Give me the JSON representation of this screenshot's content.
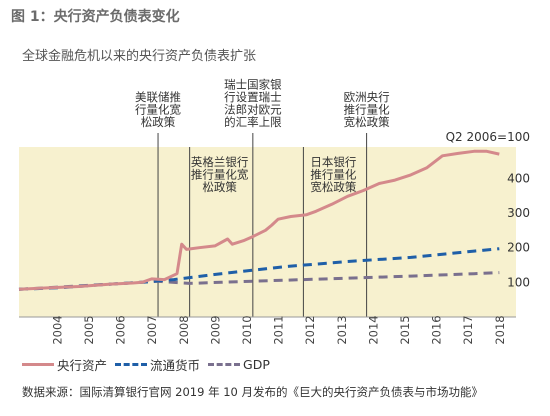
{
  "figure": {
    "title": "图 1：央行资产负债表变化",
    "subtitle": "全球金融危机以来的央行资产负债表扩张",
    "source": "数据来源：国际清算银行官网 2019 年 10 月发布的《巨大的央行资产负债表与市场功能》"
  },
  "chart_data": {
    "type": "line",
    "ylabel_unit": "Q2 2006=100",
    "ylim": [
      0,
      500
    ],
    "yticks": [
      100,
      200,
      300,
      400
    ],
    "xlim": [
      2004,
      2019
    ],
    "xticks": [
      "2004",
      "2005",
      "2006",
      "2007",
      "2008",
      "2009",
      "2010",
      "2011",
      "2012",
      "2013",
      "2014",
      "2015",
      "2016",
      "2017",
      "2018"
    ],
    "grid": false,
    "legend_position": "bottom-left",
    "series": [
      {
        "name": "央行资产",
        "color": "#d4898b",
        "style": "solid",
        "points": [
          [
            2003.6,
            80
          ],
          [
            2004.5,
            84
          ],
          [
            2005.5,
            88
          ],
          [
            2006.5,
            95
          ],
          [
            2007.2,
            98
          ],
          [
            2007.5,
            100
          ],
          [
            2007.8,
            110
          ],
          [
            2008.2,
            108
          ],
          [
            2008.6,
            125
          ],
          [
            2008.75,
            210
          ],
          [
            2008.9,
            195
          ],
          [
            2009.3,
            200
          ],
          [
            2009.8,
            205
          ],
          [
            2010.2,
            225
          ],
          [
            2010.35,
            210
          ],
          [
            2010.7,
            220
          ],
          [
            2011.0,
            232
          ],
          [
            2011.4,
            250
          ],
          [
            2011.6,
            265
          ],
          [
            2011.8,
            282
          ],
          [
            2012.2,
            290
          ],
          [
            2012.7,
            295
          ],
          [
            2013.0,
            305
          ],
          [
            2013.5,
            325
          ],
          [
            2014.0,
            348
          ],
          [
            2014.5,
            365
          ],
          [
            2015.0,
            385
          ],
          [
            2015.5,
            395
          ],
          [
            2016.0,
            410
          ],
          [
            2016.5,
            430
          ],
          [
            2017.0,
            465
          ],
          [
            2017.5,
            472
          ],
          [
            2018.0,
            478
          ],
          [
            2018.4,
            478
          ],
          [
            2018.8,
            470
          ]
        ]
      },
      {
        "name": "流通货币",
        "color": "#1f5fa8",
        "style": "dashed",
        "points": [
          [
            2003.6,
            80
          ],
          [
            2005.0,
            85
          ],
          [
            2006.5,
            95
          ],
          [
            2007.5,
            100
          ],
          [
            2008.5,
            108
          ],
          [
            2010.0,
            125
          ],
          [
            2012.0,
            145
          ],
          [
            2014.0,
            160
          ],
          [
            2016.0,
            172
          ],
          [
            2018.0,
            190
          ],
          [
            2018.8,
            197
          ]
        ]
      },
      {
        "name": "GDP",
        "color": "#7a708e",
        "style": "dashed",
        "points": [
          [
            2003.6,
            80
          ],
          [
            2005.0,
            87
          ],
          [
            2006.5,
            95
          ],
          [
            2008.0,
            103
          ],
          [
            2009.0,
            97
          ],
          [
            2010.0,
            100
          ],
          [
            2012.0,
            106
          ],
          [
            2014.0,
            112
          ],
          [
            2016.0,
            118
          ],
          [
            2018.0,
            125
          ],
          [
            2018.8,
            128
          ]
        ]
      }
    ],
    "annotations": [
      {
        "x": 2008.0,
        "lines": [
          "美联储推",
          "行量化宽",
          "松政策"
        ],
        "band": "top"
      },
      {
        "x": 2011.0,
        "lines": [
          "瑞士国家银",
          "行设置瑞士",
          "法郎对欧元",
          "的汇率上限"
        ],
        "band": "top"
      },
      {
        "x": 2014.6,
        "lines": [
          "欧洲央行",
          "推行量化",
          "宽松政策"
        ],
        "band": "top"
      },
      {
        "x": 2009.0,
        "lines": [
          "英格兰银行",
          "推行量化宽",
          "松政策"
        ],
        "band": "inner"
      },
      {
        "x": 2012.6,
        "lines": [
          "日本银行",
          "推行量化",
          "宽松政策"
        ],
        "band": "inner"
      }
    ]
  }
}
